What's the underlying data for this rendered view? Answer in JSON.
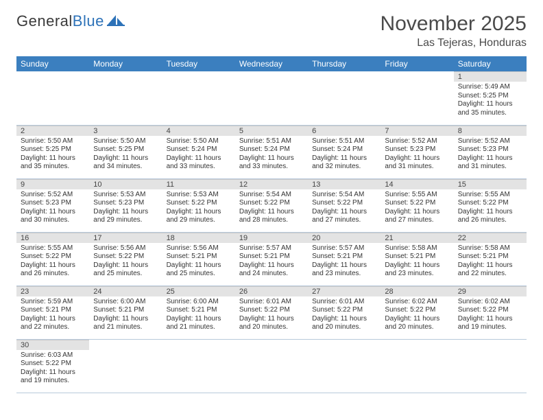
{
  "brand": {
    "part1": "General",
    "part2": "Blue"
  },
  "title": "November 2025",
  "location": "Las Tejeras, Honduras",
  "colors": {
    "header_bg": "#3b7fbf",
    "header_fg": "#ffffff",
    "daynum_bg": "#e3e3e3",
    "grid_line": "#b8c9db",
    "text": "#333333",
    "logo_blue": "#2d72b8"
  },
  "day_headers": [
    "Sunday",
    "Monday",
    "Tuesday",
    "Wednesday",
    "Thursday",
    "Friday",
    "Saturday"
  ],
  "weeks": [
    [
      {
        "n": "",
        "sr": "",
        "ss": "",
        "dl": ""
      },
      {
        "n": "",
        "sr": "",
        "ss": "",
        "dl": ""
      },
      {
        "n": "",
        "sr": "",
        "ss": "",
        "dl": ""
      },
      {
        "n": "",
        "sr": "",
        "ss": "",
        "dl": ""
      },
      {
        "n": "",
        "sr": "",
        "ss": "",
        "dl": ""
      },
      {
        "n": "",
        "sr": "",
        "ss": "",
        "dl": ""
      },
      {
        "n": "1",
        "sr": "Sunrise: 5:49 AM",
        "ss": "Sunset: 5:25 PM",
        "dl": "Daylight: 11 hours and 35 minutes."
      }
    ],
    [
      {
        "n": "2",
        "sr": "Sunrise: 5:50 AM",
        "ss": "Sunset: 5:25 PM",
        "dl": "Daylight: 11 hours and 35 minutes."
      },
      {
        "n": "3",
        "sr": "Sunrise: 5:50 AM",
        "ss": "Sunset: 5:25 PM",
        "dl": "Daylight: 11 hours and 34 minutes."
      },
      {
        "n": "4",
        "sr": "Sunrise: 5:50 AM",
        "ss": "Sunset: 5:24 PM",
        "dl": "Daylight: 11 hours and 33 minutes."
      },
      {
        "n": "5",
        "sr": "Sunrise: 5:51 AM",
        "ss": "Sunset: 5:24 PM",
        "dl": "Daylight: 11 hours and 33 minutes."
      },
      {
        "n": "6",
        "sr": "Sunrise: 5:51 AM",
        "ss": "Sunset: 5:24 PM",
        "dl": "Daylight: 11 hours and 32 minutes."
      },
      {
        "n": "7",
        "sr": "Sunrise: 5:52 AM",
        "ss": "Sunset: 5:23 PM",
        "dl": "Daylight: 11 hours and 31 minutes."
      },
      {
        "n": "8",
        "sr": "Sunrise: 5:52 AM",
        "ss": "Sunset: 5:23 PM",
        "dl": "Daylight: 11 hours and 31 minutes."
      }
    ],
    [
      {
        "n": "9",
        "sr": "Sunrise: 5:52 AM",
        "ss": "Sunset: 5:23 PM",
        "dl": "Daylight: 11 hours and 30 minutes."
      },
      {
        "n": "10",
        "sr": "Sunrise: 5:53 AM",
        "ss": "Sunset: 5:23 PM",
        "dl": "Daylight: 11 hours and 29 minutes."
      },
      {
        "n": "11",
        "sr": "Sunrise: 5:53 AM",
        "ss": "Sunset: 5:22 PM",
        "dl": "Daylight: 11 hours and 29 minutes."
      },
      {
        "n": "12",
        "sr": "Sunrise: 5:54 AM",
        "ss": "Sunset: 5:22 PM",
        "dl": "Daylight: 11 hours and 28 minutes."
      },
      {
        "n": "13",
        "sr": "Sunrise: 5:54 AM",
        "ss": "Sunset: 5:22 PM",
        "dl": "Daylight: 11 hours and 27 minutes."
      },
      {
        "n": "14",
        "sr": "Sunrise: 5:55 AM",
        "ss": "Sunset: 5:22 PM",
        "dl": "Daylight: 11 hours and 27 minutes."
      },
      {
        "n": "15",
        "sr": "Sunrise: 5:55 AM",
        "ss": "Sunset: 5:22 PM",
        "dl": "Daylight: 11 hours and 26 minutes."
      }
    ],
    [
      {
        "n": "16",
        "sr": "Sunrise: 5:55 AM",
        "ss": "Sunset: 5:22 PM",
        "dl": "Daylight: 11 hours and 26 minutes."
      },
      {
        "n": "17",
        "sr": "Sunrise: 5:56 AM",
        "ss": "Sunset: 5:22 PM",
        "dl": "Daylight: 11 hours and 25 minutes."
      },
      {
        "n": "18",
        "sr": "Sunrise: 5:56 AM",
        "ss": "Sunset: 5:21 PM",
        "dl": "Daylight: 11 hours and 25 minutes."
      },
      {
        "n": "19",
        "sr": "Sunrise: 5:57 AM",
        "ss": "Sunset: 5:21 PM",
        "dl": "Daylight: 11 hours and 24 minutes."
      },
      {
        "n": "20",
        "sr": "Sunrise: 5:57 AM",
        "ss": "Sunset: 5:21 PM",
        "dl": "Daylight: 11 hours and 23 minutes."
      },
      {
        "n": "21",
        "sr": "Sunrise: 5:58 AM",
        "ss": "Sunset: 5:21 PM",
        "dl": "Daylight: 11 hours and 23 minutes."
      },
      {
        "n": "22",
        "sr": "Sunrise: 5:58 AM",
        "ss": "Sunset: 5:21 PM",
        "dl": "Daylight: 11 hours and 22 minutes."
      }
    ],
    [
      {
        "n": "23",
        "sr": "Sunrise: 5:59 AM",
        "ss": "Sunset: 5:21 PM",
        "dl": "Daylight: 11 hours and 22 minutes."
      },
      {
        "n": "24",
        "sr": "Sunrise: 6:00 AM",
        "ss": "Sunset: 5:21 PM",
        "dl": "Daylight: 11 hours and 21 minutes."
      },
      {
        "n": "25",
        "sr": "Sunrise: 6:00 AM",
        "ss": "Sunset: 5:21 PM",
        "dl": "Daylight: 11 hours and 21 minutes."
      },
      {
        "n": "26",
        "sr": "Sunrise: 6:01 AM",
        "ss": "Sunset: 5:22 PM",
        "dl": "Daylight: 11 hours and 20 minutes."
      },
      {
        "n": "27",
        "sr": "Sunrise: 6:01 AM",
        "ss": "Sunset: 5:22 PM",
        "dl": "Daylight: 11 hours and 20 minutes."
      },
      {
        "n": "28",
        "sr": "Sunrise: 6:02 AM",
        "ss": "Sunset: 5:22 PM",
        "dl": "Daylight: 11 hours and 20 minutes."
      },
      {
        "n": "29",
        "sr": "Sunrise: 6:02 AM",
        "ss": "Sunset: 5:22 PM",
        "dl": "Daylight: 11 hours and 19 minutes."
      }
    ],
    [
      {
        "n": "30",
        "sr": "Sunrise: 6:03 AM",
        "ss": "Sunset: 5:22 PM",
        "dl": "Daylight: 11 hours and 19 minutes."
      },
      {
        "n": "",
        "sr": "",
        "ss": "",
        "dl": ""
      },
      {
        "n": "",
        "sr": "",
        "ss": "",
        "dl": ""
      },
      {
        "n": "",
        "sr": "",
        "ss": "",
        "dl": ""
      },
      {
        "n": "",
        "sr": "",
        "ss": "",
        "dl": ""
      },
      {
        "n": "",
        "sr": "",
        "ss": "",
        "dl": ""
      },
      {
        "n": "",
        "sr": "",
        "ss": "",
        "dl": ""
      }
    ]
  ]
}
